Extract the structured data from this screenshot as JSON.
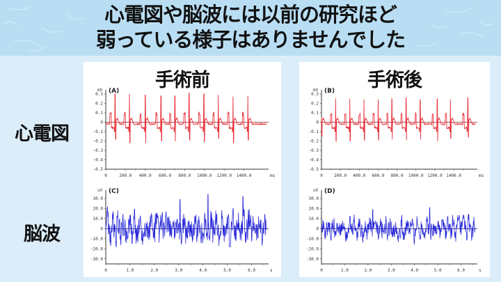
{
  "slide": {
    "title_line1": "心電図や脳波には以前の研究ほど",
    "title_line2": "弱っている様子はありませんでした",
    "column_headers": [
      "手術前",
      "手術後"
    ],
    "row_labels": [
      "心電図",
      "脳波"
    ]
  },
  "colors": {
    "title_band": "#b9def4",
    "background": "#dcedfa",
    "ecg_trace": "#e8303a",
    "eeg_trace": "#2a2ad8"
  },
  "chart_data": [
    {
      "type": "line",
      "panel": "(A)",
      "title": "手術前 心電図",
      "xlabel": "ms",
      "ylabel": "mV",
      "xlim": [
        0,
        1650
      ],
      "ylim": [
        -0.3,
        0.35
      ],
      "x_ticks": [
        "0",
        "200.0",
        "400.0",
        "600.0",
        "800.0",
        "1000.0",
        "1200.0",
        "1400.0"
      ],
      "y_ticks": [
        "0.3",
        "0.2",
        "0.1",
        "0",
        "-0.1",
        "-0.2",
        "-0.3",
        "-0.4",
        "-0.5"
      ],
      "beat_times_ms": [
        95,
        240,
        400,
        560,
        700,
        845,
        995,
        1140,
        1290,
        1440
      ],
      "r_peaks_mV": [
        0.3,
        0.3,
        0.29,
        0.28,
        0.28,
        0.31,
        0.3,
        0.29,
        0.27,
        0.28
      ],
      "s_troughs_mV": [
        -0.18,
        -0.22,
        -0.22,
        -0.2,
        -0.2,
        -0.19,
        -0.21,
        -0.17,
        -0.22,
        -0.19
      ],
      "color": "#e8303a"
    },
    {
      "type": "line",
      "panel": "(B)",
      "title": "手術後 心電図",
      "xlabel": "ms",
      "ylabel": "mV",
      "xlim": [
        0,
        1650
      ],
      "ylim": [
        -0.3,
        0.35
      ],
      "x_ticks": [
        "0",
        "200.0",
        "400.0",
        "600.0",
        "800.0",
        "1000.0",
        "1200.0",
        "1400.0"
      ],
      "y_ticks": [
        "0.3",
        "0.2",
        "0.1",
        "0",
        "-0.1",
        "-0.2",
        "-0.3",
        "-0.4",
        "-0.5"
      ],
      "beat_times_ms": [
        0,
        150,
        300,
        450,
        600,
        745,
        895,
        1045,
        1225,
        1365,
        1550
      ],
      "r_peaks_mV": [
        0.05,
        0.25,
        0.25,
        0.24,
        0.24,
        0.25,
        0.26,
        0.24,
        0.25,
        0.24,
        0.26
      ],
      "s_troughs_mV": [
        -0.15,
        -0.2,
        -0.2,
        -0.19,
        -0.19,
        -0.18,
        -0.19,
        -0.18,
        -0.2,
        -0.17,
        -0.16
      ],
      "color": "#e8303a"
    },
    {
      "type": "line",
      "panel": "(C)",
      "title": "手術前 脳波",
      "xlabel": "s",
      "ylabel": "uV",
      "xlim": [
        0,
        6.7
      ],
      "ylim": [
        -30,
        35
      ],
      "x_ticks": [
        "0",
        "1.0",
        "2.0",
        "3.0",
        "4.0",
        "5.0",
        "6.0"
      ],
      "y_ticks": [
        "30.0",
        "20.0",
        "10.0",
        "0",
        "-10.0",
        "-20.0",
        "-30.0"
      ],
      "amplitude_range_uV": [
        -18,
        34
      ],
      "notable_peaks": [
        {
          "t": 3.05,
          "v": 29
        },
        {
          "t": 4.2,
          "v": 34
        },
        {
          "t": 5.65,
          "v": 32
        }
      ],
      "color": "#2a2ad8"
    },
    {
      "type": "line",
      "panel": "(D)",
      "title": "手術後 脳波",
      "xlabel": "s",
      "ylabel": "uV",
      "xlim": [
        0,
        6.7
      ],
      "ylim": [
        -30,
        35
      ],
      "x_ticks": [
        "0",
        "1.0",
        "2.0",
        "3.0",
        "4.0",
        "5.0",
        "6.0"
      ],
      "y_ticks": [
        "30.0",
        "20.0",
        "10.0",
        "0",
        "-10.0",
        "-20.0",
        "-30.0"
      ],
      "amplitude_range_uV": [
        -16,
        21
      ],
      "notable_peaks": [
        {
          "t": 2.2,
          "v": 19
        },
        {
          "t": 4.65,
          "v": 21
        }
      ],
      "color": "#2a2ad8"
    }
  ]
}
